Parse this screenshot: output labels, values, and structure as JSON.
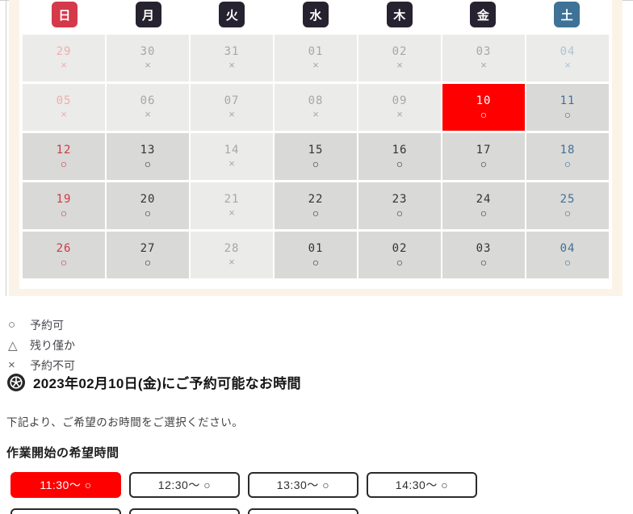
{
  "colors": {
    "sunday_badge": "#d43a4a",
    "saturday_badge": "#3e7296",
    "weekday_badge": "#262230",
    "selected_bg": "#fe0000",
    "selected_text": "#ffffff",
    "cell_available_bg": "#d9d9d7",
    "cell_unavailable_bg": "#ebebe9",
    "container_border": "#fcf3e8",
    "button_selected_bg": "#fe0000",
    "button_border": "#2b2b2b",
    "text": {
      "sun": {
        "available": "#ce3a46",
        "unavailable": "#eeadb0"
      },
      "weekday": {
        "available": "#343439",
        "unavailable": "#a8a7a4"
      },
      "sat": {
        "available": "#3f719c",
        "unavailable": "#aec2d5"
      }
    }
  },
  "calendar": {
    "day_headers": [
      {
        "label": "日",
        "type": "sunday"
      },
      {
        "label": "月",
        "type": "weekday"
      },
      {
        "label": "火",
        "type": "weekday"
      },
      {
        "label": "水",
        "type": "weekday"
      },
      {
        "label": "木",
        "type": "weekday"
      },
      {
        "label": "金",
        "type": "weekday"
      },
      {
        "label": "土",
        "type": "saturday"
      }
    ],
    "selected_date": "10",
    "weeks": [
      [
        {
          "date": "29",
          "symbol": "×",
          "status": "unavailable",
          "day": "sun"
        },
        {
          "date": "30",
          "symbol": "×",
          "status": "unavailable",
          "day": "weekday"
        },
        {
          "date": "31",
          "symbol": "×",
          "status": "unavailable",
          "day": "weekday"
        },
        {
          "date": "01",
          "symbol": "×",
          "status": "unavailable",
          "day": "weekday"
        },
        {
          "date": "02",
          "symbol": "×",
          "status": "unavailable",
          "day": "weekday"
        },
        {
          "date": "03",
          "symbol": "×",
          "status": "unavailable",
          "day": "weekday"
        },
        {
          "date": "04",
          "symbol": "×",
          "status": "unavailable",
          "day": "sat"
        }
      ],
      [
        {
          "date": "05",
          "symbol": "×",
          "status": "unavailable",
          "day": "sun"
        },
        {
          "date": "06",
          "symbol": "×",
          "status": "unavailable",
          "day": "weekday"
        },
        {
          "date": "07",
          "symbol": "×",
          "status": "unavailable",
          "day": "weekday"
        },
        {
          "date": "08",
          "symbol": "×",
          "status": "unavailable",
          "day": "weekday"
        },
        {
          "date": "09",
          "symbol": "×",
          "status": "unavailable",
          "day": "weekday"
        },
        {
          "date": "10",
          "symbol": "○",
          "status": "available",
          "day": "weekday",
          "selected": true
        },
        {
          "date": "11",
          "symbol": "○",
          "status": "available",
          "day": "sat"
        }
      ],
      [
        {
          "date": "12",
          "symbol": "○",
          "status": "available",
          "day": "sun"
        },
        {
          "date": "13",
          "symbol": "○",
          "status": "available",
          "day": "weekday"
        },
        {
          "date": "14",
          "symbol": "×",
          "status": "unavailable",
          "day": "weekday"
        },
        {
          "date": "15",
          "symbol": "○",
          "status": "available",
          "day": "weekday"
        },
        {
          "date": "16",
          "symbol": "○",
          "status": "available",
          "day": "weekday"
        },
        {
          "date": "17",
          "symbol": "○",
          "status": "available",
          "day": "weekday"
        },
        {
          "date": "18",
          "symbol": "○",
          "status": "available",
          "day": "sat"
        }
      ],
      [
        {
          "date": "19",
          "symbol": "○",
          "status": "available",
          "day": "sun"
        },
        {
          "date": "20",
          "symbol": "○",
          "status": "available",
          "day": "weekday"
        },
        {
          "date": "21",
          "symbol": "×",
          "status": "unavailable",
          "day": "weekday"
        },
        {
          "date": "22",
          "symbol": "○",
          "status": "available",
          "day": "weekday"
        },
        {
          "date": "23",
          "symbol": "○",
          "status": "available",
          "day": "weekday"
        },
        {
          "date": "24",
          "symbol": "○",
          "status": "available",
          "day": "weekday"
        },
        {
          "date": "25",
          "symbol": "○",
          "status": "available",
          "day": "sat"
        }
      ],
      [
        {
          "date": "26",
          "symbol": "○",
          "status": "available",
          "day": "sun"
        },
        {
          "date": "27",
          "symbol": "○",
          "status": "available",
          "day": "weekday"
        },
        {
          "date": "28",
          "symbol": "×",
          "status": "unavailable",
          "day": "weekday"
        },
        {
          "date": "01",
          "symbol": "○",
          "status": "available",
          "day": "weekday"
        },
        {
          "date": "02",
          "symbol": "○",
          "status": "available",
          "day": "weekday"
        },
        {
          "date": "03",
          "symbol": "○",
          "status": "available",
          "day": "weekday"
        },
        {
          "date": "04",
          "symbol": "○",
          "status": "available",
          "day": "sat"
        }
      ]
    ]
  },
  "legend": {
    "items": [
      {
        "symbol": "○",
        "label": "予約可"
      },
      {
        "symbol": "△",
        "label": "残り僅か"
      },
      {
        "symbol": "×",
        "label": "予約不可"
      }
    ]
  },
  "availability": {
    "icon": "wheel-icon",
    "heading": "2023年02月10日(金)にご予約可能なお時間",
    "instruction": "下記より、ご希望のお時間をご選択ください。",
    "section_title": "作業開始の希望時間"
  },
  "time_slots": {
    "row1": [
      {
        "label": "11:30〜 ○",
        "selected": true
      },
      {
        "label": "12:30〜 ○",
        "selected": false
      },
      {
        "label": "13:30〜 ○",
        "selected": false
      },
      {
        "label": "14:30〜 ○",
        "selected": false
      }
    ],
    "row2_partial": [
      {
        "label": "",
        "selected": false
      },
      {
        "label": "",
        "selected": false
      },
      {
        "label": "",
        "selected": false
      }
    ]
  }
}
